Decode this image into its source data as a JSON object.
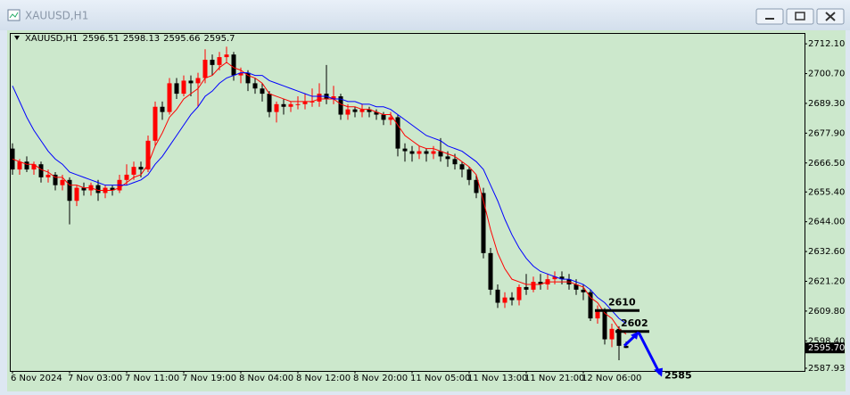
{
  "window": {
    "title": "XAUUSD,H1"
  },
  "chart_data": {
    "type": "candlestick",
    "title": "XAUUSD,H1",
    "categories": [
      "6 Nov 2024",
      null,
      null,
      null,
      null,
      null,
      null,
      null,
      "7 Nov 03:00",
      null,
      null,
      null,
      null,
      null,
      null,
      null,
      "7 Nov 11:00",
      null,
      null,
      null,
      null,
      null,
      null,
      null,
      "7 Nov 19:00",
      null,
      null,
      null,
      null,
      null,
      null,
      null,
      "8 Nov 04:00",
      null,
      null,
      null,
      null,
      null,
      null,
      null,
      "8 Nov 12:00",
      null,
      null,
      null,
      null,
      null,
      null,
      null,
      "8 Nov 20:00",
      null,
      null,
      null,
      null,
      null,
      null,
      null,
      "11 Nov 05:00",
      null,
      null,
      null,
      null,
      null,
      null,
      null,
      "11 Nov 13:00",
      null,
      null,
      null,
      null,
      null,
      null,
      null,
      "11 Nov 21:00",
      null,
      null,
      null,
      null,
      null,
      null,
      null,
      "12 Nov 06:00",
      null,
      null,
      null,
      null,
      null,
      null
    ],
    "ohlc": [
      [
        2672,
        2674,
        2662,
        2664
      ],
      [
        2664,
        2668,
        2662,
        2667
      ],
      [
        2667,
        2669,
        2663,
        2664
      ],
      [
        2664,
        2667,
        2662,
        2666
      ],
      [
        2666,
        2667,
        2659,
        2661
      ],
      [
        2661,
        2664,
        2659,
        2662
      ],
      [
        2662,
        2663,
        2656,
        2658
      ],
      [
        2658,
        2662,
        2656,
        2660
      ],
      [
        2660,
        2661,
        2643,
        2652
      ],
      [
        2652,
        2658,
        2650,
        2657
      ],
      [
        2657,
        2659,
        2654,
        2656
      ],
      [
        2656,
        2659,
        2654,
        2658
      ],
      [
        2658,
        2660,
        2652,
        2655
      ],
      [
        2655,
        2658,
        2653,
        2657
      ],
      [
        2657,
        2658,
        2654,
        2656
      ],
      [
        2656,
        2662,
        2655,
        2660
      ],
      [
        2660,
        2666,
        2658,
        2662
      ],
      [
        2662,
        2667,
        2660,
        2665
      ],
      [
        2665,
        2667,
        2661,
        2664
      ],
      [
        2664,
        2677,
        2663,
        2675
      ],
      [
        2675,
        2690,
        2673,
        2688
      ],
      [
        2688,
        2690,
        2683,
        2686
      ],
      [
        2686,
        2699,
        2685,
        2697
      ],
      [
        2697,
        2699,
        2691,
        2693
      ],
      [
        2693,
        2700,
        2692,
        2698
      ],
      [
        2698,
        2700,
        2692,
        2697
      ],
      [
        2697,
        2701,
        2688,
        2699
      ],
      [
        2699,
        2710,
        2697,
        2706
      ],
      [
        2706,
        2708,
        2700,
        2704
      ],
      [
        2704,
        2709,
        2702,
        2707
      ],
      [
        2707,
        2711,
        2705,
        2708
      ],
      [
        2708,
        2709,
        2698,
        2700
      ],
      [
        2700,
        2703,
        2697,
        2701
      ],
      [
        2701,
        2702,
        2694,
        2697
      ],
      [
        2697,
        2699,
        2693,
        2695
      ],
      [
        2695,
        2697,
        2690,
        2693
      ],
      [
        2693,
        2694,
        2684,
        2686
      ],
      [
        2686,
        2690,
        2682,
        2689
      ],
      [
        2689,
        2691,
        2685,
        2688
      ],
      [
        2688,
        2690,
        2686,
        2689
      ],
      [
        2689,
        2692,
        2687,
        2689
      ],
      [
        2689,
        2693,
        2687,
        2690
      ],
      [
        2690,
        2695,
        2688,
        2690
      ],
      [
        2690,
        2697,
        2688,
        2693
      ],
      [
        2693,
        2704,
        2689,
        2691
      ],
      [
        2691,
        2696,
        2689,
        2692
      ],
      [
        2692,
        2693,
        2683,
        2685
      ],
      [
        2685,
        2689,
        2683,
        2687
      ],
      [
        2687,
        2688,
        2684,
        2686
      ],
      [
        2686,
        2689,
        2684,
        2687
      ],
      [
        2687,
        2688,
        2684,
        2686
      ],
      [
        2686,
        2687,
        2683,
        2685
      ],
      [
        2685,
        2686,
        2681,
        2683
      ],
      [
        2683,
        2686,
        2681,
        2684
      ],
      [
        2684,
        2685,
        2669,
        2672
      ],
      [
        2672,
        2674,
        2667,
        2671
      ],
      [
        2671,
        2673,
        2667,
        2670
      ],
      [
        2670,
        2673,
        2668,
        2671
      ],
      [
        2671,
        2672,
        2667,
        2670
      ],
      [
        2670,
        2673,
        2668,
        2671
      ],
      [
        2671,
        2676,
        2667,
        2669
      ],
      [
        2669,
        2671,
        2665,
        2668
      ],
      [
        2668,
        2670,
        2664,
        2666
      ],
      [
        2666,
        2667,
        2661,
        2664
      ],
      [
        2664,
        2665,
        2658,
        2660
      ],
      [
        2660,
        2662,
        2653,
        2655
      ],
      [
        2655,
        2657,
        2630,
        2632
      ],
      [
        2632,
        2634,
        2616,
        2618
      ],
      [
        2618,
        2620,
        2611,
        2613
      ],
      [
        2613,
        2617,
        2611,
        2615
      ],
      [
        2615,
        2617,
        2612,
        2614
      ],
      [
        2614,
        2620,
        2612,
        2619
      ],
      [
        2619,
        2624,
        2616,
        2618
      ],
      [
        2618,
        2623,
        2617,
        2621
      ],
      [
        2621,
        2624,
        2618,
        2620
      ],
      [
        2620,
        2624,
        2618,
        2622
      ],
      [
        2622,
        2625,
        2620,
        2623
      ],
      [
        2623,
        2625,
        2620,
        2622
      ],
      [
        2622,
        2624,
        2618,
        2620
      ],
      [
        2620,
        2622,
        2616,
        2618
      ],
      [
        2618,
        2620,
        2614,
        2617
      ],
      [
        2617,
        2618,
        2606,
        2607
      ],
      [
        2607,
        2612,
        2605,
        2610
      ],
      [
        2610,
        2611,
        2597,
        2599
      ],
      [
        2599,
        2605,
        2596,
        2603
      ],
      [
        2603,
        2604,
        2591,
        2596.51
      ],
      [
        2596.51,
        2598.13,
        2595.66,
        2595.7
      ]
    ],
    "up_color": "#ff0000",
    "down_color": "#000000",
    "series": [
      {
        "color": "#ff0000",
        "values": [
          2668,
          2667,
          2666,
          2666,
          2664,
          2663,
          2661,
          2661,
          2658,
          2658,
          2657,
          2657,
          2656,
          2656,
          2656,
          2657,
          2659,
          2661,
          2662,
          2666,
          2673,
          2678,
          2684,
          2687,
          2691,
          2693,
          2695,
          2699,
          2700,
          2703,
          2705,
          2703,
          2702,
          2700,
          2699,
          2697,
          2693,
          2692,
          2691,
          2690,
          2690,
          2690,
          2690,
          2691,
          2691,
          2691,
          2689,
          2688,
          2688,
          2687,
          2687,
          2686,
          2685,
          2685,
          2681,
          2677,
          2675,
          2673,
          2672,
          2672,
          2671,
          2670,
          2669,
          2667,
          2665,
          2662,
          2652,
          2641,
          2632,
          2626,
          2622,
          2621,
          2620,
          2620,
          2620,
          2621,
          2621,
          2621,
          2621,
          2620,
          2619,
          2615,
          2613,
          2609,
          2607,
          2603,
          2601
        ]
      },
      {
        "color": "#0000ff",
        "values": [
          2696,
          2690,
          2684,
          2679,
          2675,
          2671,
          2668,
          2666,
          2663,
          2662,
          2661,
          2660,
          2659,
          2658,
          2658,
          2658,
          2658,
          2659,
          2660,
          2662,
          2666,
          2669,
          2673,
          2677,
          2681,
          2685,
          2688,
          2692,
          2694,
          2697,
          2699,
          2700,
          2701,
          2701,
          2700,
          2700,
          2698,
          2697,
          2696,
          2695,
          2694,
          2693,
          2692,
          2692,
          2692,
          2691,
          2691,
          2690,
          2690,
          2689,
          2689,
          2688,
          2688,
          2687,
          2685,
          2683,
          2681,
          2679,
          2677,
          2676,
          2675,
          2673,
          2672,
          2671,
          2669,
          2667,
          2664,
          2658,
          2652,
          2645,
          2639,
          2634,
          2630,
          2627,
          2625,
          2624,
          2623,
          2622,
          2622,
          2621,
          2620,
          2618,
          2615,
          2613,
          2610,
          2607,
          2605
        ]
      }
    ],
    "ylim": [
      2586.9,
      2715.9
    ],
    "yticks": [
      {
        "value": 2712.1,
        "label": "2712.10"
      },
      {
        "value": 2700.7,
        "label": "2700.70"
      },
      {
        "value": 2689.3,
        "label": "2689.30"
      },
      {
        "value": 2677.9,
        "label": "2677.90"
      },
      {
        "value": 2666.5,
        "label": "2666.50"
      },
      {
        "value": 2655.4,
        "label": "2655.40"
      },
      {
        "value": 2644,
        "label": "2644.00"
      },
      {
        "value": 2632.6,
        "label": "2632.60"
      },
      {
        "value": 2621.2,
        "label": "2621.20"
      },
      {
        "value": 2609.8,
        "label": "2609.80"
      },
      {
        "value": 2598.4,
        "label": "2598.40"
      },
      2587.93
    ],
    "current_price": {
      "value": 2595.7,
      "label": "2595.70"
    },
    "levels": [
      2610,
      2602
    ],
    "target": 2585,
    "annotation_color": "#0000ff",
    "grid": false
  }
}
